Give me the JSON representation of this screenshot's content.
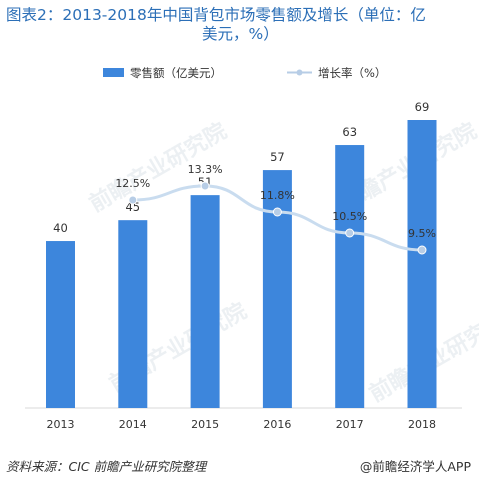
{
  "title_line1": "图表2：2013-2018年中国背包市场零售额及增长（单位：亿",
  "title_line2": "美元，%）",
  "source": "资料来源：CIC 前瞻产业研究院整理",
  "brand": "@前瞻经济学人APP",
  "watermark": "前瞻产业研究院",
  "colors": {
    "bar": "#3d86dc",
    "line": "#c9dcef",
    "marker": "#b7cde6",
    "title": "#2c6fb7"
  },
  "chart_data": {
    "type": "bar",
    "categories": [
      "2013",
      "2014",
      "2015",
      "2016",
      "2017",
      "2018"
    ],
    "series": [
      {
        "name": "零售额（亿美元）",
        "type": "bar",
        "values": [
          40,
          45,
          51,
          57,
          63,
          69
        ],
        "labels": [
          "40",
          "45",
          "51",
          "57",
          "63",
          "69"
        ]
      },
      {
        "name": "增长率（%）",
        "type": "line",
        "x": [
          "2014",
          "2015",
          "2016",
          "2017",
          "2018"
        ],
        "values": [
          12.5,
          13.3,
          11.8,
          10.5,
          9.5
        ],
        "labels": [
          "12.5%",
          "13.3%",
          "11.8%",
          "10.5%",
          "9.5%"
        ]
      }
    ],
    "ylim_bar": [
      0,
      75
    ],
    "ylim_line": [
      0,
      25
    ],
    "legend_position": "top-center",
    "grid": false
  }
}
